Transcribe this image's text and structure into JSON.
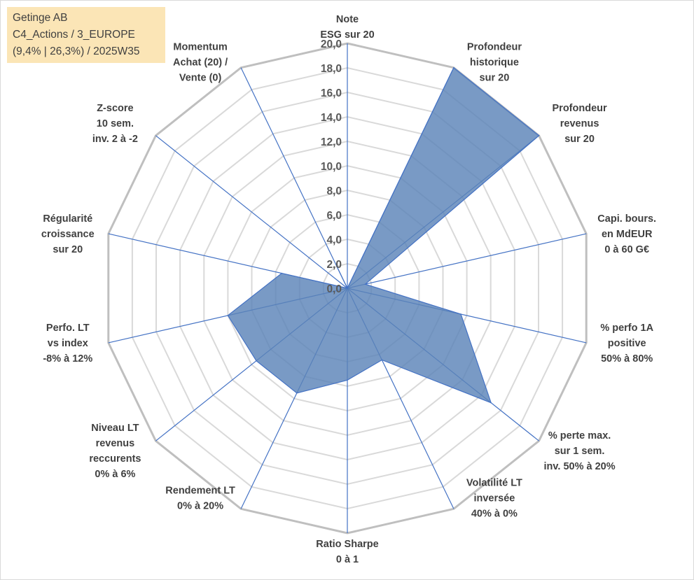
{
  "title_box": {
    "line1": "Getinge AB",
    "line2": "C4_Actions / 3_EUROPE",
    "line3": "(9,4% | 26,3%) / 2025W35"
  },
  "colors": {
    "fill": "#5B84B8",
    "stroke": "#4472C4",
    "grid_outer": "#bfbfbf",
    "grid_inner": "#d9d9d9",
    "spoke": "#4472C4"
  },
  "chart_data": {
    "type": "radar",
    "rlim": [
      0,
      20
    ],
    "ticks": [
      "0,0",
      "2,0",
      "4,0",
      "6,0",
      "8,0",
      "10,0",
      "12,0",
      "14,0",
      "16,0",
      "18,0",
      "20,0"
    ],
    "tick_values": [
      0,
      2,
      4,
      6,
      8,
      10,
      12,
      14,
      16,
      18,
      20
    ],
    "grid": true,
    "legend": "none",
    "axes": [
      {
        "lines": [
          "Note",
          "ESG sur 20"
        ],
        "value": 0
      },
      {
        "lines": [
          "Profondeur",
          "historique",
          "sur 20"
        ],
        "value": 20
      },
      {
        "lines": [
          "Profondeur",
          "revenus",
          "sur 20"
        ],
        "value": 20
      },
      {
        "lines": [
          "Capi. bours.",
          "en MdEUR",
          "0 à 60 G€"
        ],
        "value": 1.5
      },
      {
        "lines": [
          "% perfo 1A",
          "positive",
          "50% à 80%"
        ],
        "value": 9.5
      },
      {
        "lines": [
          "% perte max.",
          "sur 1 sem.",
          "inv. 50% à 20%"
        ],
        "value": 15
      },
      {
        "lines": [
          "Volatilité LT",
          "inversée",
          "40% à 0%"
        ],
        "value": 6.5
      },
      {
        "lines": [
          "Ratio Sharpe",
          "0 à 1"
        ],
        "value": 7.5
      },
      {
        "lines": [
          "Rendement LT",
          "0% à 20%"
        ],
        "value": 9.5
      },
      {
        "lines": [
          "Niveau LT",
          "revenus",
          "reccurents",
          "0% à 6%"
        ],
        "value": 9.5
      },
      {
        "lines": [
          "Perfo. LT",
          "vs index",
          "-8% à 12%"
        ],
        "value": 10
      },
      {
        "lines": [
          "Régularité",
          "croissance",
          "sur 20"
        ],
        "value": 5.5
      },
      {
        "lines": [
          "Z-score",
          "10 sem.",
          "inv. 2 à -2"
        ],
        "value": 0
      },
      {
        "lines": [
          "Momentum",
          "Achat (20) /",
          "Vente (0)"
        ],
        "value": 2
      }
    ]
  }
}
